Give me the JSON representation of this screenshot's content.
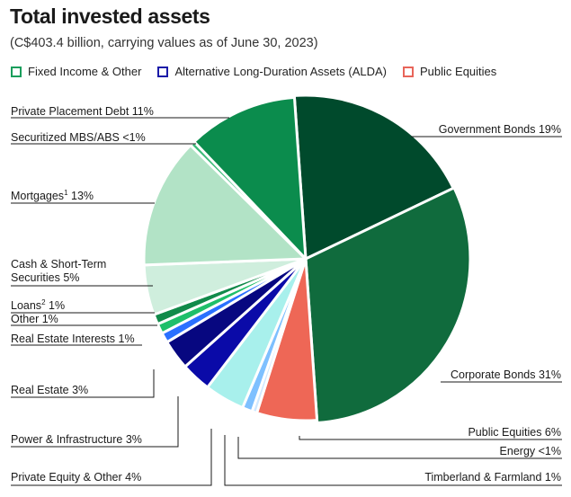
{
  "title": "Total invested assets",
  "subtitle": "(C$403.4 billion, carrying values as of June 30, 2023)",
  "legend": [
    {
      "label": "Fixed Income & Other",
      "color": "#1a9e5c"
    },
    {
      "label": "Alternative Long-Duration Assets (ALDA)",
      "color": "#1a1aa8"
    },
    {
      "label": "Public Equities",
      "color": "#e8655a"
    }
  ],
  "chart_data": {
    "type": "pie",
    "title": "Total invested assets",
    "subtitle": "(C$403.4 billion, carrying values as of June 30, 2023)",
    "slices": [
      {
        "name": "Government Bonds",
        "label": "Government Bonds 19%",
        "value": 19,
        "group": "Fixed Income & Other",
        "color": "#004a2c"
      },
      {
        "name": "Corporate Bonds",
        "label": "Corporate Bonds 31%",
        "value": 31,
        "group": "Fixed Income & Other",
        "color": "#106b3d"
      },
      {
        "name": "Public Equities",
        "label": "Public Equities 6%",
        "value": 6,
        "group": "Public Equities",
        "color": "#ee6756"
      },
      {
        "name": "Energy",
        "label": "Energy <1%",
        "value": 0.5,
        "group": "ALDA",
        "color": "#d0e8ff"
      },
      {
        "name": "Timberland & Farmland",
        "label": "Timberland & Farmland 1%",
        "value": 1,
        "group": "ALDA",
        "color": "#7ec0ff"
      },
      {
        "name": "Private Equity & Other",
        "label": "Private Equity & Other 4%",
        "value": 4,
        "group": "ALDA",
        "color": "#a8f0ec"
      },
      {
        "name": "Power & Infrastructure",
        "label": "Power & Infrastructure 3%",
        "value": 3,
        "group": "ALDA",
        "color": "#0a0aa8"
      },
      {
        "name": "Real Estate",
        "label": "Real Estate 3%",
        "value": 3,
        "group": "ALDA",
        "color": "#070780"
      },
      {
        "name": "Real Estate Interests",
        "label": "Real Estate Interests 1%",
        "value": 1,
        "group": "ALDA",
        "color": "#2a70ff"
      },
      {
        "name": "Other",
        "label": "Other 1%",
        "value": 1,
        "group": "Fixed Income & Other",
        "color": "#1fbf6a"
      },
      {
        "name": "Loans",
        "label": "Loans² 1%",
        "value": 1,
        "group": "Fixed Income & Other",
        "color": "#118a4a"
      },
      {
        "name": "Cash & Short-Term Securities",
        "label": "Cash & Short-Term Securities 5%",
        "value": 5,
        "group": "Fixed Income & Other",
        "color": "#cfeedd"
      },
      {
        "name": "Mortgages",
        "label": "Mortgages¹ 13%",
        "value": 13,
        "group": "Fixed Income & Other",
        "color": "#b2e3c6"
      },
      {
        "name": "Securitized MBS/ABS",
        "label": "Securitized MBS/ABS <1%",
        "value": 0.5,
        "group": "Fixed Income & Other",
        "color": "#3ebc7a"
      },
      {
        "name": "Private Placement Debt",
        "label": "Private Placement Debt 11%",
        "value": 11,
        "group": "Fixed Income & Other",
        "color": "#0b8c4d"
      }
    ]
  },
  "labels": {
    "government_bonds": "Government Bonds 19%",
    "corporate_bonds": "Corporate Bonds 31%",
    "public_equities": "Public Equities 6%",
    "energy": "Energy <1%",
    "timberland": "Timberland & Farmland 1%",
    "private_equity": "Private Equity & Other 4%",
    "power_infra": "Power & Infrastructure 3%",
    "real_estate": "Real Estate 3%",
    "real_estate_interests": "Real Estate Interests 1%",
    "other": "Other 1%",
    "loans_text": "Loans",
    "loans_sup": "2",
    "loans_pct": " 1%",
    "cash_line1": "Cash & Short-Term",
    "cash_line2": "Securities 5%",
    "mortgages_text": "Mortgages",
    "mortgages_sup": "1",
    "mortgages_pct": " 13%",
    "securitized": "Securitized MBS/ABS <1%",
    "private_placement": "Private Placement Debt 11%"
  }
}
